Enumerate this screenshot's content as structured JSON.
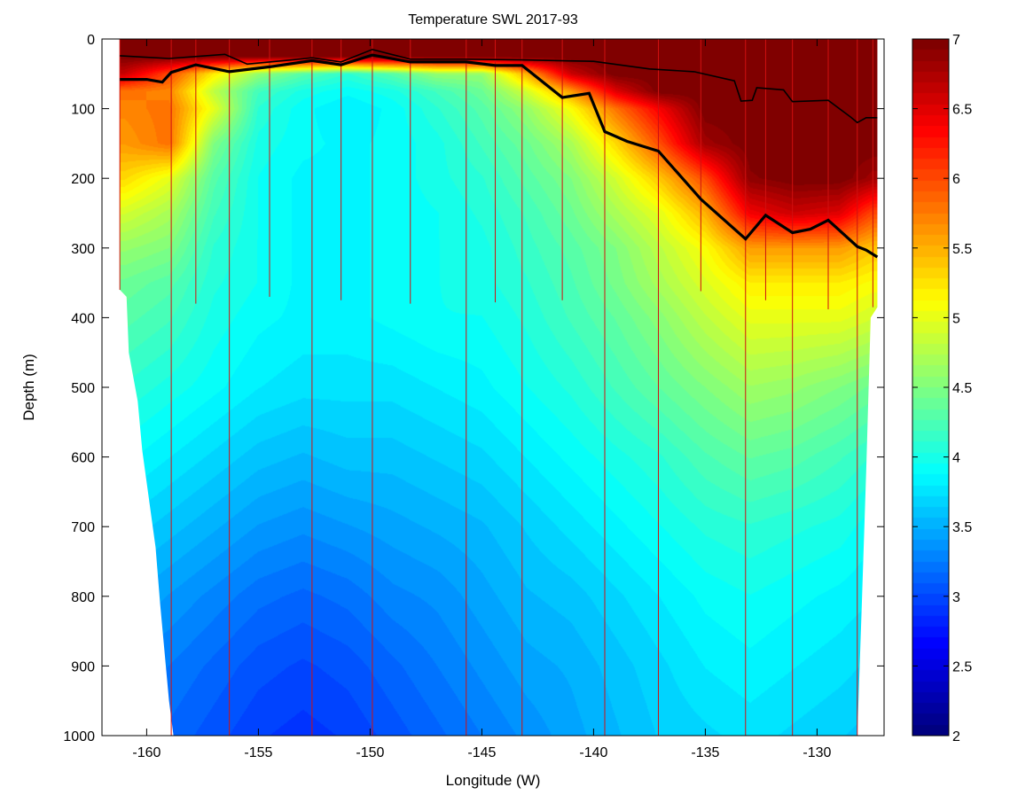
{
  "chart_data": {
    "type": "heatmap",
    "title": "Temperature SWL 2017-93",
    "xlabel": "Longitude (W)",
    "ylabel": "Depth (m)",
    "xlim": [
      -162,
      -127
    ],
    "ylim": [
      1000,
      0
    ],
    "x_ticks": [
      -160,
      -155,
      -150,
      -145,
      -140,
      -135,
      -130
    ],
    "y_ticks": [
      0,
      100,
      200,
      300,
      400,
      500,
      600,
      700,
      800,
      900,
      1000
    ],
    "colorbar": {
      "min": 2,
      "max": 7,
      "ticks": [
        2,
        2.5,
        3,
        3.5,
        4,
        4.5,
        5,
        5.5,
        6,
        6.5,
        7
      ],
      "colormap": "jet"
    },
    "stations": [
      {
        "lon": -161.2,
        "max_depth": 360
      },
      {
        "lon": -158.9,
        "max_depth": 1000
      },
      {
        "lon": -157.8,
        "max_depth": 380
      },
      {
        "lon": -156.3,
        "max_depth": 1000
      },
      {
        "lon": -154.5,
        "max_depth": 370
      },
      {
        "lon": -152.6,
        "max_depth": 1000
      },
      {
        "lon": -151.3,
        "max_depth": 375
      },
      {
        "lon": -149.9,
        "max_depth": 1000
      },
      {
        "lon": -148.2,
        "max_depth": 380
      },
      {
        "lon": -145.7,
        "max_depth": 1000
      },
      {
        "lon": -144.4,
        "max_depth": 378
      },
      {
        "lon": -143.2,
        "max_depth": 1000
      },
      {
        "lon": -141.4,
        "max_depth": 375
      },
      {
        "lon": -139.5,
        "max_depth": 1000
      },
      {
        "lon": -137.1,
        "max_depth": 1000
      },
      {
        "lon": -135.2,
        "max_depth": 362
      },
      {
        "lon": -133.2,
        "max_depth": 1000
      },
      {
        "lon": -132.3,
        "max_depth": 375
      },
      {
        "lon": -131.1,
        "max_depth": 1000
      },
      {
        "lon": -129.5,
        "max_depth": 388
      },
      {
        "lon": -128.2,
        "max_depth": 1000
      },
      {
        "lon": -127.5,
        "max_depth": 385
      }
    ],
    "section_bottom": [
      {
        "lon": -161.2,
        "depth": 360
      },
      {
        "lon": -160.9,
        "depth": 370
      },
      {
        "lon": -160.8,
        "depth": 450
      },
      {
        "lon": -160.4,
        "depth": 520
      },
      {
        "lon": -160.2,
        "depth": 590
      },
      {
        "lon": -159.9,
        "depth": 660
      },
      {
        "lon": -159.6,
        "depth": 730
      },
      {
        "lon": -159.4,
        "depth": 810
      },
      {
        "lon": -159.2,
        "depth": 880
      },
      {
        "lon": -159.0,
        "depth": 950
      },
      {
        "lon": -158.8,
        "depth": 1000
      },
      {
        "lon": -128.2,
        "depth": 1000
      },
      {
        "lon": -128.0,
        "depth": 815
      },
      {
        "lon": -127.8,
        "depth": 620
      },
      {
        "lon": -127.6,
        "depth": 400
      },
      {
        "lon": -127.3,
        "depth": 385
      }
    ],
    "isotherm_thick": [
      {
        "lon": -161.2,
        "depth": 58
      },
      {
        "lon": -160.0,
        "depth": 58
      },
      {
        "lon": -159.3,
        "depth": 62
      },
      {
        "lon": -158.9,
        "depth": 48
      },
      {
        "lon": -157.8,
        "depth": 37
      },
      {
        "lon": -156.3,
        "depth": 47
      },
      {
        "lon": -154.5,
        "depth": 40
      },
      {
        "lon": -152.6,
        "depth": 31
      },
      {
        "lon": -151.3,
        "depth": 37
      },
      {
        "lon": -149.9,
        "depth": 23
      },
      {
        "lon": -148.2,
        "depth": 33
      },
      {
        "lon": -145.7,
        "depth": 33
      },
      {
        "lon": -144.4,
        "depth": 38
      },
      {
        "lon": -143.2,
        "depth": 38
      },
      {
        "lon": -141.4,
        "depth": 84
      },
      {
        "lon": -140.2,
        "depth": 78
      },
      {
        "lon": -139.5,
        "depth": 133
      },
      {
        "lon": -138.5,
        "depth": 147
      },
      {
        "lon": -137.1,
        "depth": 161
      },
      {
        "lon": -135.2,
        "depth": 230
      },
      {
        "lon": -133.2,
        "depth": 287
      },
      {
        "lon": -132.3,
        "depth": 253
      },
      {
        "lon": -131.1,
        "depth": 278
      },
      {
        "lon": -130.3,
        "depth": 273
      },
      {
        "lon": -129.5,
        "depth": 260
      },
      {
        "lon": -128.2,
        "depth": 298
      },
      {
        "lon": -127.8,
        "depth": 303
      },
      {
        "lon": -127.3,
        "depth": 313
      }
    ],
    "isotherm_thin": [
      {
        "lon": -161.2,
        "depth": 24
      },
      {
        "lon": -159.0,
        "depth": 28
      },
      {
        "lon": -156.5,
        "depth": 22
      },
      {
        "lon": -155.5,
        "depth": 36
      },
      {
        "lon": -153.5,
        "depth": 30
      },
      {
        "lon": -152.6,
        "depth": 27
      },
      {
        "lon": -151.3,
        "depth": 33
      },
      {
        "lon": -149.9,
        "depth": 15
      },
      {
        "lon": -148.2,
        "depth": 29
      },
      {
        "lon": -145.7,
        "depth": 29
      },
      {
        "lon": -143.2,
        "depth": 30
      },
      {
        "lon": -140.0,
        "depth": 32
      },
      {
        "lon": -137.5,
        "depth": 43
      },
      {
        "lon": -135.5,
        "depth": 47
      },
      {
        "lon": -133.7,
        "depth": 60
      },
      {
        "lon": -133.4,
        "depth": 89
      },
      {
        "lon": -132.9,
        "depth": 88
      },
      {
        "lon": -132.7,
        "depth": 70
      },
      {
        "lon": -131.5,
        "depth": 73
      },
      {
        "lon": -131.1,
        "depth": 90
      },
      {
        "lon": -129.5,
        "depth": 88
      },
      {
        "lon": -128.5,
        "depth": 112
      },
      {
        "lon": -128.2,
        "depth": 120
      },
      {
        "lon": -127.8,
        "depth": 113
      },
      {
        "lon": -127.3,
        "depth": 113
      }
    ],
    "temperature_field": {
      "lons": [
        -161,
        -159,
        -157,
        -155,
        -153,
        -151,
        -149,
        -147,
        -145,
        -143,
        -141,
        -139,
        -137,
        -135,
        -133,
        -131,
        -129,
        -127.5
      ],
      "depths": [
        0,
        25,
        50,
        75,
        100,
        150,
        200,
        250,
        300,
        350,
        400,
        500,
        600,
        700,
        800,
        900,
        1000
      ],
      "values": [
        [
          7.0,
          7.0,
          7.0,
          7.0,
          7.0,
          7.0,
          7.0,
          7.0,
          7.0,
          7.0,
          7.0,
          7.0,
          7.0,
          7.0,
          7.0,
          7.0,
          7.0,
          7.0
        ],
        [
          7.0,
          7.0,
          7.0,
          7.0,
          7.0,
          7.0,
          7.0,
          7.0,
          7.0,
          7.0,
          7.0,
          7.0,
          7.0,
          7.0,
          7.0,
          7.0,
          7.0,
          7.0
        ],
        [
          6.6,
          6.0,
          5.2,
          4.6,
          4.3,
          4.1,
          4.3,
          4.6,
          4.6,
          5.5,
          6.6,
          7.0,
          7.0,
          7.0,
          7.0,
          7.0,
          7.0,
          7.0
        ],
        [
          5.8,
          5.7,
          4.8,
          4.2,
          4.0,
          3.9,
          4.0,
          4.2,
          4.4,
          4.9,
          5.6,
          6.5,
          7.0,
          7.0,
          7.0,
          7.0,
          7.0,
          7.0
        ],
        [
          5.7,
          5.8,
          5.0,
          4.1,
          3.9,
          3.8,
          3.9,
          4.1,
          4.3,
          4.6,
          5.1,
          5.8,
          6.4,
          7.0,
          7.0,
          7.0,
          7.0,
          7.0
        ],
        [
          5.6,
          5.8,
          4.5,
          4.0,
          3.9,
          3.85,
          3.9,
          4.0,
          4.2,
          4.4,
          4.7,
          5.3,
          6.0,
          6.8,
          7.0,
          7.0,
          7.0,
          7.0
        ],
        [
          5.3,
          5.0,
          4.3,
          3.95,
          3.85,
          3.85,
          3.9,
          4.0,
          4.1,
          4.3,
          4.5,
          4.9,
          5.4,
          6.0,
          6.9,
          7.0,
          7.0,
          6.8
        ],
        [
          4.9,
          4.7,
          4.2,
          3.95,
          3.85,
          3.85,
          3.9,
          3.95,
          4.05,
          4.2,
          4.4,
          4.7,
          5.0,
          5.5,
          6.4,
          6.6,
          6.5,
          6.0
        ],
        [
          4.6,
          4.5,
          4.1,
          3.95,
          3.85,
          3.85,
          3.9,
          3.95,
          4.0,
          4.15,
          4.3,
          4.5,
          4.8,
          5.1,
          5.6,
          5.6,
          5.6,
          5.4
        ],
        [
          4.4,
          4.3,
          4.05,
          3.95,
          3.85,
          3.85,
          3.9,
          3.95,
          4.0,
          4.1,
          4.25,
          4.45,
          4.7,
          4.95,
          5.2,
          5.2,
          5.2,
          5.1
        ],
        [
          4.3,
          4.2,
          4.0,
          3.9,
          3.85,
          3.85,
          3.9,
          3.95,
          3.95,
          4.05,
          4.2,
          4.35,
          4.55,
          4.8,
          5.0,
          5.0,
          5.0,
          4.9
        ],
        [
          4.1,
          4.0,
          3.9,
          3.8,
          3.75,
          3.75,
          3.75,
          3.8,
          3.85,
          3.95,
          4.05,
          4.2,
          4.35,
          4.5,
          4.65,
          4.6,
          4.5,
          4.4
        ],
        [
          3.9,
          3.8,
          3.7,
          3.6,
          3.55,
          3.6,
          3.6,
          3.65,
          3.7,
          3.8,
          3.9,
          4.0,
          4.1,
          4.25,
          4.35,
          4.3,
          4.2,
          4.1
        ],
        [
          3.7,
          3.6,
          3.5,
          3.4,
          3.35,
          3.4,
          3.45,
          3.5,
          3.55,
          3.65,
          3.75,
          3.85,
          3.95,
          4.05,
          4.1,
          4.05,
          4.0,
          3.9
        ],
        [
          3.5,
          3.4,
          3.3,
          3.2,
          3.15,
          3.2,
          3.3,
          3.35,
          3.45,
          3.55,
          3.6,
          3.7,
          3.8,
          3.9,
          3.95,
          3.9,
          3.85,
          3.8
        ],
        [
          3.3,
          3.25,
          3.15,
          3.05,
          3.0,
          3.05,
          3.15,
          3.25,
          3.35,
          3.45,
          3.5,
          3.6,
          3.7,
          3.8,
          3.85,
          3.8,
          3.75,
          3.7
        ],
        [
          3.2,
          3.15,
          3.05,
          2.95,
          2.9,
          2.95,
          3.05,
          3.15,
          3.25,
          3.35,
          3.45,
          3.55,
          3.65,
          3.7,
          3.75,
          3.7,
          3.65,
          3.6
        ]
      ]
    }
  }
}
